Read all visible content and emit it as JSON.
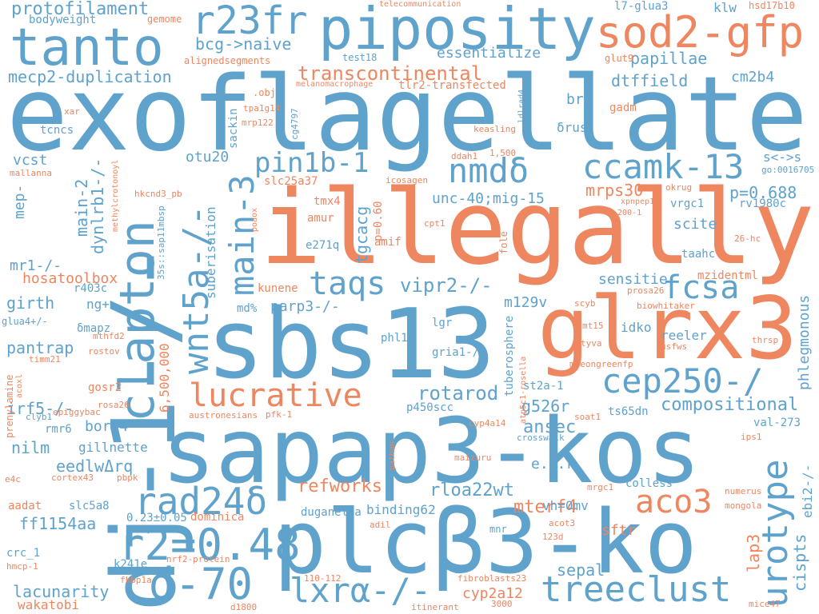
{
  "palette": {
    "blue": "#5fa2cc",
    "orange": "#ee8660",
    "background": "#ffffff"
  },
  "words": {
    "exoflagellate": "exoflagellate",
    "illegally": "illegally",
    "sapap3_kos": "sapap3-kos",
    "sbs13": "sbs13",
    "plcb3_ko": "plcβ3-ko",
    "dj1": "dj-1-/-",
    "glrx3": "glrx3",
    "piposity": "piposity",
    "tanto": "tanto",
    "sod2_gfp": "sod2-gfp",
    "clapton": "clapton",
    "r23fr": "r23fr",
    "wnt5a": "wnt5a-/-",
    "main3": "main-3",
    "nmd": "nmdδ",
    "ccamk13": "ccamk-13",
    "taqs": "taqs",
    "fcsa": "fcsa",
    "lucrative": "lucrative",
    "cep250": "cep250-/",
    "r2": "r2=0.48",
    "d70": "d-70",
    "lxra": "lxrα-/-",
    "treeclust": "treeclust",
    "urotype": "urotype",
    "rad24d": "rad24δ",
    "aco3": "aco3",
    "pin1b": "pin1b-1",
    "protofilament": "protofilament",
    "transcontinental": "transcontinental",
    "mecp2": "mecp2-duplication",
    "bcg": "bcg->naive",
    "essentialize": "essentialize",
    "papillae": "papillae",
    "dtffield": "dtffield",
    "cm2b4": "cm2b4",
    "br5": "br5",
    "unc40": "unc-40;mig-15",
    "mrps30": "mrps30",
    "p0688": "p=0.688",
    "vrgc1": "vrgc1",
    "scite": "scite",
    "vipr2": "vipr2-/-",
    "sensitie": "sensitie",
    "parp3": "parp3-/-",
    "m129v": "m129v",
    "rotarod": "rotarod",
    "g526r": "g526r",
    "compositional": "compositional",
    "ansec": "ansec",
    "phlegmonous": "phlegmonous",
    "p450scc": "p450scc",
    "refworks": "refworks",
    "rloa22wt": "rloa22wt",
    "mterf4": "mterf4",
    "binding62": "binding62",
    "ff1154aa": "ff1154aa",
    "lacunarity": "lacunarity",
    "eedlw": "eedlwΔrq",
    "irf5": "irf5-/-",
    "bor4": "bor-4",
    "nilm": "nilm",
    "gillnette": "gillnette",
    "pantrap": "pantrap",
    "girth": "girth",
    "mr1": "mr1-/-",
    "hosatoolbox": "hosatoolbox",
    "vcst": "vcst",
    "mep": "mep-",
    "main2": "main-2",
    "dynlrb1": "dynlrb1-/-",
    "otu20": "otu20",
    "suberisation": "suberisation",
    "sackin": "sackin",
    "tgcacg": "tgcacg",
    "lap3": "lap3",
    "cispts": "cispts",
    "ebi2": "ebi2-/-",
    "sepal": "sepal",
    "sftr": "sftr",
    "cyp2a12": "cyp2a12",
    "vh0mv": "vh=0mv",
    "elr": "e.l.r",
    "colless": "colless",
    "st2a1": "st2a-1",
    "ts65dn": "ts65dn",
    "tuberosphere": "tuberosphere",
    "idko": "idko",
    "reeler": "reeler",
    "duganella": "duganella",
    "dominica": "dominica",
    "k241e": "k241e",
    "crc1": "crc_1",
    "wakatobi": "wakatobi",
    "bodyweight": "bodyweight",
    "tcncs": "tcncs",
    "klw": "klw",
    "l7glua3": "l7-glua3",
    "hsd17b10": "hsd17b10",
    "telecommunication": "telecommunication",
    "gemome": "gemome",
    "alignedsegments": "alignedsegments",
    "test18": "test18",
    "glut9": "glut9",
    "gadm": "gadm",
    "drus": "δrus",
    "ssll": "s<->s",
    "rv1980c": "rv1980c",
    "mzidentml": "mzidentml",
    "taahc": "taahc",
    "e271q": "e271q",
    "amur": "amur",
    "tmx4": "tmx4",
    "amif": "amif",
    "kunene": "kunene",
    "md": "md%",
    "ng": "ng+",
    "r403c": "r403c",
    "glua4": "glua4+/-",
    "dmapz": "δmapz",
    "lgr": "lgr",
    "phl1": "phl1",
    "gria1": "gria1-/-",
    "gosr2": "gosr2",
    "rmr6": "rmr6",
    "n6500000": "6,500,000",
    "val273": "val-273",
    "n023": "0.23±0.05",
    "slc5a8": "slc5a8",
    "aadat": "aadat",
    "slc25a37": "slc25a37",
    "p060": "p=0.60",
    "melanomacrophage": "melanomacrophage",
    "tlr2": "tlr2-transfected",
    "obj": ".obj",
    "tpa1g14": "tpa1g14",
    "mrp122": "mrp122",
    "cg4797": "cg4797",
    "xar": "xar",
    "mallanna": "mallanna",
    "hkcnd3": "hkcnd3_pb",
    "methylcrotonoyl": "methylcrotonoyl",
    "ldlrad4": "ldlrad4",
    "keasling": "keasling",
    "ddah1": "ddah1",
    "n1500": "1,500",
    "icosagen": "icosagen",
    "go0016705": "go:0016705",
    "okrug": "okrug",
    "xpnpep1": "xpnpep1",
    "n2001": "200-1",
    "cpt1": "cpt1",
    "fole": "fole",
    "n26hc": "26-hc",
    "poaox": "poaox",
    "sap11mbsp": "35s::sap11mbsp",
    "prosa26": "prosa26",
    "biowhitaker": "biowhitaker",
    "scyb": "scyb",
    "mt15": "mt15",
    "tyva": "tyva",
    "usfws": "usfws",
    "thrsp": "thrsp",
    "mneongreenfp": "mneongreenfp",
    "mthfd2": "mthfd2",
    "rostov": "rostov",
    "timm21": "timm21",
    "prenylamine": "prenylamine",
    "acoxl": "acoxl",
    "rosa26": "rosa26",
    "epiggybac": "epiggybac",
    "clyb1": "clyb1",
    "austronesians": "austronesians",
    "pfk1": "pfk-1",
    "atp5c1": "atp5c1-rosella",
    "cyp4a14": "cyp4a14",
    "soat1": "soat1",
    "crosswalk": "crosswalk",
    "ips1": "ips1",
    "pathan": "pathan",
    "maizuru": "maizuru",
    "e4c": "e4c",
    "cortex43": "cortex43",
    "pbpk": "pbpk",
    "mrgc1": "mrgc1",
    "numerus": "numerus",
    "mongola": "mongola",
    "adil": "adil",
    "acot3": "acot3",
    "n123d": "123d",
    "mnr": "mnr",
    "hmcp1": "hmcp-1",
    "nrf2": "nrf2-protein",
    "fkbp1a": "fkbp1a",
    "n110": "110-112",
    "fibroblasts23": "fibroblasts23",
    "d1800": "d1800",
    "itinerant": "itinerant",
    "n3000": "3000",
    "mice47": "mice47"
  }
}
